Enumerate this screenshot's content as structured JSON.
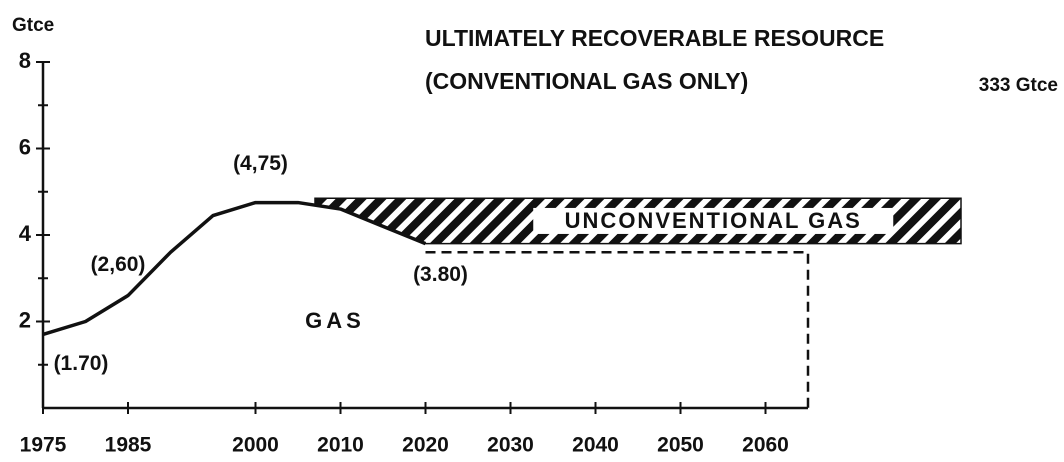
{
  "chart_data": {
    "type": "line",
    "y_label": "Gtce",
    "title": "ULTIMATELY RECOVERABLE RESOURCE",
    "subtitle": "(CONVENTIONAL GAS ONLY)",
    "resource_label": "333 Gtce",
    "area_label": "GAS",
    "xlim": [
      1975,
      2065
    ],
    "ylim": [
      0,
      8
    ],
    "yticks": [
      2,
      4,
      6,
      8
    ],
    "yminor": [
      1,
      3,
      5,
      7
    ],
    "xticks": [
      1975,
      1985,
      2000,
      2010,
      2020,
      2030,
      2040,
      2050,
      2060
    ],
    "series": [
      {
        "name": "GAS",
        "color": "#111111",
        "x": [
          1975,
          1980,
          1985,
          1990,
          1995,
          2000,
          2005,
          2010,
          2015,
          2020
        ],
        "values": [
          1.7,
          2.0,
          2.6,
          3.6,
          4.45,
          4.75,
          4.75,
          4.6,
          4.2,
          3.8
        ],
        "value_labels": [
          "(1.70)",
          null,
          "(2,60)",
          null,
          null,
          "(4,75)",
          null,
          null,
          null,
          "(3.80)"
        ]
      }
    ],
    "band": {
      "name": "UNCONVENTIONAL GAS",
      "color": "#111111",
      "x": [
        2007,
        2010,
        2015,
        2020,
        2083
      ],
      "lower": [
        4.7,
        4.6,
        4.2,
        3.8,
        3.8
      ],
      "upper": [
        4.85,
        4.85,
        4.85,
        4.85,
        4.85
      ]
    },
    "dashed_outline": {
      "x": [
        2020,
        2065,
        2065
      ],
      "values": [
        3.6,
        3.6,
        0
      ]
    }
  }
}
